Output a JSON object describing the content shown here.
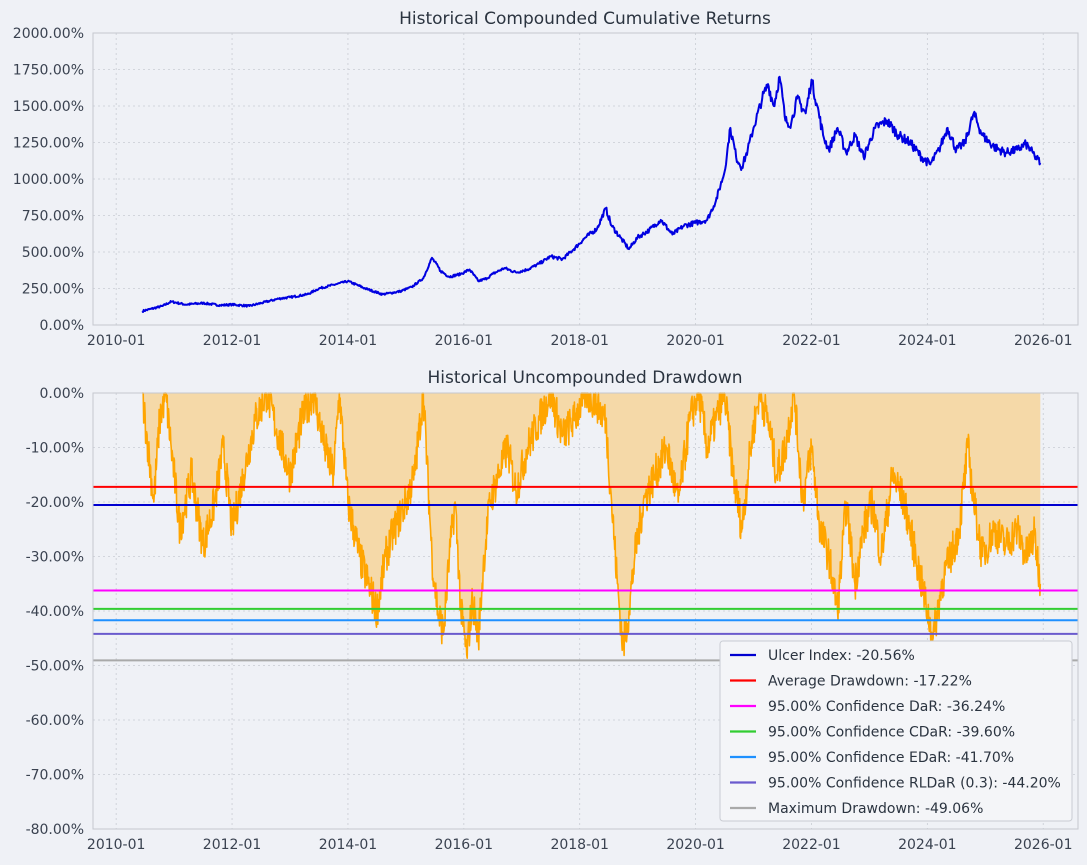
{
  "chart_data": [
    {
      "type": "line",
      "title": "Historical Compounded Cumulative Returns",
      "xlabel": "",
      "ylabel": "",
      "ylim": [
        0,
        2000
      ],
      "yticks": [
        "0.00%",
        "250.00%",
        "500.00%",
        "750.00%",
        "1000.00%",
        "1250.00%",
        "1500.00%",
        "1750.00%",
        "2000.00%"
      ],
      "xlim": [
        2009.6,
        2026.6
      ],
      "xticks": [
        "2010-01",
        "2012-01",
        "2014-01",
        "2016-01",
        "2018-01",
        "2020-01",
        "2022-01",
        "2024-01",
        "2026-01"
      ],
      "grid": true,
      "series": [
        {
          "name": "Cumulative Returns",
          "color": "#0000e0",
          "x": [
            2010.45,
            2010.6,
            2010.8,
            2010.95,
            2011.2,
            2011.5,
            2011.8,
            2012.0,
            2012.3,
            2012.5,
            2012.8,
            2013.0,
            2013.3,
            2013.5,
            2013.8,
            2014.0,
            2014.3,
            2014.6,
            2014.9,
            2015.1,
            2015.3,
            2015.45,
            2015.6,
            2015.75,
            2015.95,
            2016.1,
            2016.25,
            2016.4,
            2016.5,
            2016.7,
            2016.9,
            2017.1,
            2017.3,
            2017.5,
            2017.7,
            2017.9,
            2018.1,
            2018.3,
            2018.45,
            2018.55,
            2018.7,
            2018.85,
            2019.0,
            2019.2,
            2019.4,
            2019.6,
            2019.8,
            2020.0,
            2020.2,
            2020.35,
            2020.5,
            2020.6,
            2020.7,
            2020.8,
            2020.9,
            2021.0,
            2021.15,
            2021.25,
            2021.35,
            2021.45,
            2021.55,
            2021.65,
            2021.75,
            2021.9,
            2022.0,
            2022.1,
            2022.2,
            2022.3,
            2022.45,
            2022.6,
            2022.75,
            2022.9,
            2023.1,
            2023.3,
            2023.5,
            2023.7,
            2023.9,
            2024.05,
            2024.2,
            2024.35,
            2024.5,
            2024.65,
            2024.8,
            2024.95,
            2025.15,
            2025.35,
            2025.55,
            2025.7,
            2025.85,
            2025.95
          ],
          "values": [
            95,
            110,
            130,
            160,
            140,
            150,
            135,
            140,
            130,
            150,
            180,
            190,
            210,
            250,
            280,
            300,
            250,
            210,
            230,
            260,
            320,
            460,
            370,
            330,
            350,
            380,
            300,
            320,
            350,
            390,
            360,
            380,
            420,
            470,
            450,
            520,
            600,
            660,
            800,
            680,
            600,
            520,
            600,
            650,
            720,
            620,
            680,
            700,
            720,
            850,
            1050,
            1350,
            1150,
            1080,
            1200,
            1350,
            1550,
            1650,
            1500,
            1700,
            1400,
            1380,
            1550,
            1450,
            1680,
            1500,
            1300,
            1200,
            1350,
            1180,
            1300,
            1150,
            1350,
            1400,
            1300,
            1250,
            1150,
            1100,
            1200,
            1350,
            1200,
            1250,
            1450,
            1300,
            1220,
            1180,
            1200,
            1240,
            1160,
            1110
          ]
        }
      ]
    },
    {
      "type": "area",
      "title": "Historical Uncompounded Drawdown",
      "xlabel": "",
      "ylabel": "",
      "ylim": [
        -80,
        0
      ],
      "yticks": [
        "-80.00%",
        "-70.00%",
        "-60.00%",
        "-50.00%",
        "-40.00%",
        "-30.00%",
        "-20.00%",
        "-10.00%",
        "0.00%"
      ],
      "xlim": [
        2009.6,
        2026.6
      ],
      "xticks": [
        "2010-01",
        "2012-01",
        "2014-01",
        "2016-01",
        "2018-01",
        "2020-01",
        "2022-01",
        "2024-01",
        "2026-01"
      ],
      "grid": true,
      "series": [
        {
          "name": "Drawdown",
          "color": "#ffa500",
          "fill": "#f5d9a8",
          "x": [
            2010.45,
            2010.55,
            2010.65,
            2010.75,
            2010.85,
            2010.95,
            2011.1,
            2011.3,
            2011.5,
            2011.7,
            2011.85,
            2012.0,
            2012.2,
            2012.4,
            2012.6,
            2012.8,
            2013.0,
            2013.2,
            2013.4,
            2013.6,
            2013.75,
            2013.85,
            2014.0,
            2014.2,
            2014.35,
            2014.5,
            2014.65,
            2014.8,
            2015.0,
            2015.15,
            2015.3,
            2015.45,
            2015.55,
            2015.65,
            2015.75,
            2015.85,
            2015.95,
            2016.05,
            2016.15,
            2016.25,
            2016.35,
            2016.45,
            2016.6,
            2016.75,
            2016.9,
            2017.1,
            2017.3,
            2017.5,
            2017.7,
            2017.9,
            2018.1,
            2018.3,
            2018.45,
            2018.55,
            2018.65,
            2018.75,
            2018.85,
            2018.95,
            2019.1,
            2019.3,
            2019.5,
            2019.7,
            2019.9,
            2020.05,
            2020.2,
            2020.35,
            2020.5,
            2020.65,
            2020.8,
            2020.95,
            2021.1,
            2021.25,
            2021.4,
            2021.55,
            2021.7,
            2021.85,
            2022.0,
            2022.15,
            2022.3,
            2022.45,
            2022.6,
            2022.75,
            2022.9,
            2023.05,
            2023.2,
            2023.4,
            2023.6,
            2023.8,
            2024.0,
            2024.1,
            2024.25,
            2024.4,
            2024.55,
            2024.7,
            2024.8,
            2024.95,
            2025.15,
            2025.35,
            2025.55,
            2025.7,
            2025.85,
            2025.95
          ],
          "values": [
            0,
            -10,
            -20,
            -5,
            0,
            -10,
            -25,
            -15,
            -28,
            -20,
            -10,
            -25,
            -15,
            -5,
            0,
            -8,
            -15,
            -5,
            0,
            -10,
            -15,
            0,
            -20,
            -30,
            -35,
            -40,
            -30,
            -25,
            -20,
            -15,
            0,
            -30,
            -40,
            -44,
            -30,
            -20,
            -40,
            -48,
            -38,
            -45,
            -30,
            -20,
            -15,
            -10,
            -18,
            -10,
            -5,
            0,
            -8,
            -5,
            0,
            -2,
            -5,
            -20,
            -35,
            -47,
            -40,
            -30,
            -20,
            -15,
            -10,
            -20,
            -5,
            0,
            -10,
            -5,
            0,
            -15,
            -25,
            -10,
            0,
            -5,
            -15,
            -10,
            0,
            -20,
            -10,
            -25,
            -30,
            -40,
            -20,
            -35,
            -25,
            -20,
            -30,
            -15,
            -20,
            -30,
            -40,
            -45,
            -35,
            -30,
            -25,
            -10,
            -20,
            -30,
            -25,
            -28,
            -25,
            -30,
            -26,
            -35
          ]
        }
      ],
      "reference_lines": [
        {
          "label": "Ulcer Index: -20.56%",
          "value": -20.56,
          "color": "#0000d0"
        },
        {
          "label": "Average Drawdown: -17.22%",
          "value": -17.22,
          "color": "#ff0000"
        },
        {
          "label": "95.00% Confidence DaR: -36.24%",
          "value": -36.24,
          "color": "#ff00ff"
        },
        {
          "label": "95.00% Confidence CDaR: -39.60%",
          "value": -39.6,
          "color": "#32cd32"
        },
        {
          "label": "95.00% Confidence EDaR: -41.70%",
          "value": -41.7,
          "color": "#1e90ff"
        },
        {
          "label": "95.00% Confidence RLDaR (0.3): -44.20%",
          "value": -44.2,
          "color": "#6a5acd"
        },
        {
          "label": "Maximum Drawdown: -49.06%",
          "value": -49.06,
          "color": "#a9a9a9"
        }
      ],
      "legend_position": "lower-right"
    }
  ]
}
